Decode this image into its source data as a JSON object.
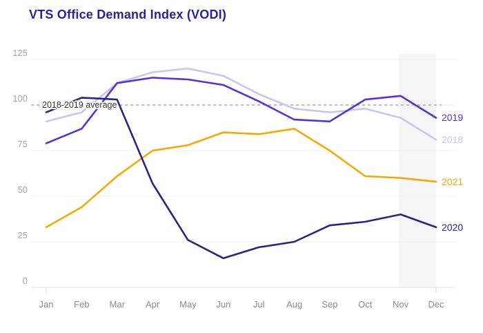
{
  "page": {
    "background": "#ffffff"
  },
  "chart_data": {
    "type": "line",
    "title": "VTS Office Demand Index (VODI)",
    "title_color": "#2a1ea6",
    "categories": [
      "Jan",
      "Feb",
      "Mar",
      "Apr",
      "May",
      "Jun",
      "Jul",
      "Aug",
      "Sep",
      "Oct",
      "Nov",
      "Dec"
    ],
    "xlabel": "",
    "ylabel": "",
    "ylim": [
      0,
      125
    ],
    "yticks": [
      0,
      25,
      50,
      75,
      100,
      125
    ],
    "grid": "horizontal",
    "legend_position": "line-end-right",
    "average_line": {
      "label": "2018-2019 average",
      "value": 100,
      "style": "dashed",
      "color": "#999999"
    },
    "highlight_band": {
      "from": "Nov",
      "to": "Dec",
      "color": "#f6f6f6"
    },
    "series": [
      {
        "name": "2018",
        "color": "#c9c5f3",
        "values": [
          91,
          96,
          112,
          118,
          120,
          116,
          106,
          98,
          96,
          98,
          93,
          81
        ]
      },
      {
        "name": "2019",
        "color": "#5431de",
        "values": [
          79,
          87,
          112,
          115,
          114,
          111,
          102,
          92,
          91,
          103,
          105,
          93
        ]
      },
      {
        "name": "2021",
        "color": "#f5a800",
        "values": [
          33,
          44,
          61,
          75,
          78,
          85,
          84,
          87,
          75,
          61,
          60,
          58
        ]
      },
      {
        "name": "2020",
        "color": "#2a2387",
        "values": [
          96,
          104,
          103,
          57,
          26,
          16,
          22,
          25,
          34,
          36,
          40,
          33
        ]
      }
    ]
  }
}
